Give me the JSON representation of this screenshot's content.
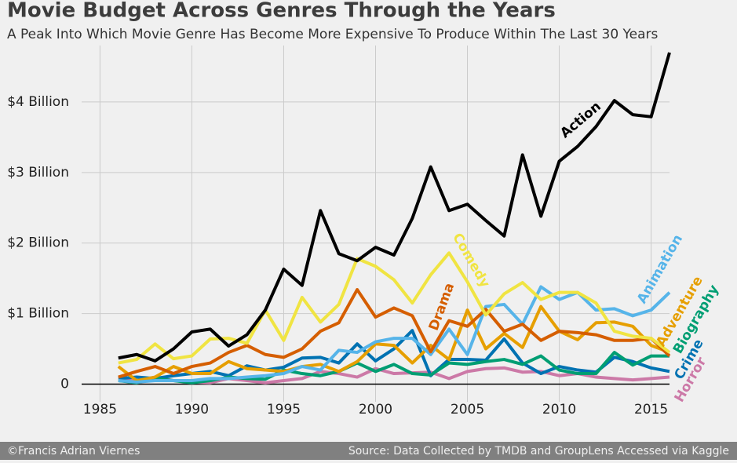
{
  "chart_data": {
    "type": "line",
    "title": "Movie Budget Across Genres Through the Years",
    "subtitle": "A Peak Into Which Movie Genre Has Become More Expensive To Produce Within The Last 30 Years",
    "footer_left": "©Francis Adrian Viernes",
    "footer_right": "Source: Data Collected by TMDB and GroupLens Accessed via Kaggle",
    "x": [
      1986,
      1987,
      1988,
      1989,
      1990,
      1991,
      1992,
      1993,
      1994,
      1995,
      1996,
      1997,
      1998,
      1999,
      2000,
      2001,
      2002,
      2003,
      2004,
      2005,
      2006,
      2007,
      2008,
      2009,
      2010,
      2011,
      2012,
      2013,
      2014,
      2015,
      2016
    ],
    "xlim": [
      1984,
      2016
    ],
    "xticks": [
      1985,
      1990,
      1995,
      2000,
      2005,
      2010,
      2015
    ],
    "ylim": [
      -0.25,
      4.8
    ],
    "yticks": [
      0,
      {
        "value": 1,
        "label": "$1 Billion"
      },
      {
        "value": 2,
        "label": "$2 Billion"
      },
      {
        "value": 3,
        "label": "$3 Billion"
      },
      {
        "value": 4,
        "label": "$4 Billion"
      }
    ],
    "grid": true,
    "series": [
      {
        "name": "Action",
        "color": "#000000",
        "values": [
          0.37,
          0.42,
          0.33,
          0.5,
          0.74,
          0.78,
          0.54,
          0.7,
          1.05,
          1.63,
          1.4,
          2.46,
          1.85,
          1.75,
          1.94,
          1.83,
          2.35,
          3.08,
          2.46,
          2.55,
          2.32,
          2.1,
          3.25,
          2.38,
          3.16,
          3.37,
          3.65,
          4.02,
          3.82,
          3.79,
          4.7
        ]
      },
      {
        "name": "Comedy",
        "color": "#f0e442",
        "values": [
          0.3,
          0.35,
          0.57,
          0.36,
          0.4,
          0.64,
          0.65,
          0.58,
          1.05,
          0.62,
          1.23,
          0.88,
          1.13,
          1.78,
          1.67,
          1.48,
          1.15,
          1.55,
          1.86,
          1.45,
          0.98,
          1.28,
          1.44,
          1.2,
          1.3,
          1.3,
          1.15,
          0.75,
          0.68,
          0.65,
          0.45
        ]
      },
      {
        "name": "Drama",
        "color": "#d55e00",
        "values": [
          0.1,
          0.18,
          0.25,
          0.15,
          0.25,
          0.3,
          0.45,
          0.55,
          0.42,
          0.38,
          0.5,
          0.75,
          0.87,
          1.34,
          0.95,
          1.08,
          0.97,
          0.46,
          0.9,
          0.82,
          1.06,
          0.75,
          0.85,
          0.62,
          0.75,
          0.73,
          0.7,
          0.62,
          0.62,
          0.65,
          0.4
        ]
      },
      {
        "name": "Animation",
        "color": "#56b4e9",
        "values": [
          0.05,
          0.03,
          0.05,
          0.05,
          0.05,
          0.08,
          0.08,
          0.1,
          0.12,
          0.15,
          0.25,
          0.2,
          0.48,
          0.45,
          0.6,
          0.65,
          0.65,
          0.42,
          0.78,
          0.42,
          1.1,
          1.13,
          0.85,
          1.38,
          1.2,
          1.3,
          1.05,
          1.07,
          0.97,
          1.05,
          1.3
        ]
      },
      {
        "name": "Adventure",
        "color": "#e69f00",
        "values": [
          0.25,
          0.05,
          0.1,
          0.25,
          0.15,
          0.15,
          0.32,
          0.22,
          0.2,
          0.18,
          0.25,
          0.28,
          0.18,
          0.32,
          0.57,
          0.55,
          0.3,
          0.55,
          0.35,
          1.05,
          0.5,
          0.72,
          0.52,
          1.1,
          0.75,
          0.63,
          0.87,
          0.88,
          0.82,
          0.55,
          0.45
        ]
      },
      {
        "name": "Biography",
        "color": "#009e73",
        "values": [
          0.05,
          0.02,
          0.08,
          0.05,
          0.02,
          0.05,
          0.1,
          0.08,
          0.07,
          0.2,
          0.15,
          0.12,
          0.18,
          0.3,
          0.18,
          0.28,
          0.15,
          0.13,
          0.3,
          0.28,
          0.32,
          0.35,
          0.28,
          0.4,
          0.2,
          0.15,
          0.15,
          0.45,
          0.27,
          0.4,
          0.4
        ]
      },
      {
        "name": "Crime",
        "color": "#0072b2",
        "values": [
          0.08,
          0.1,
          0.08,
          0.12,
          0.15,
          0.18,
          0.12,
          0.26,
          0.2,
          0.24,
          0.37,
          0.38,
          0.3,
          0.57,
          0.33,
          0.5,
          0.76,
          0.12,
          0.35,
          0.35,
          0.34,
          0.64,
          0.3,
          0.15,
          0.25,
          0.2,
          0.17,
          0.38,
          0.32,
          0.23,
          0.18
        ]
      },
      {
        "name": "Horror",
        "color": "#cc79a7",
        "values": [
          0.05,
          0.05,
          0.1,
          0.05,
          0.03,
          0.02,
          0.08,
          0.05,
          0.02,
          0.05,
          0.08,
          0.18,
          0.15,
          0.1,
          0.22,
          0.15,
          0.16,
          0.17,
          0.08,
          0.18,
          0.22,
          0.23,
          0.17,
          0.18,
          0.12,
          0.15,
          0.1,
          0.08,
          0.06,
          0.08,
          0.1
        ]
      }
    ]
  }
}
